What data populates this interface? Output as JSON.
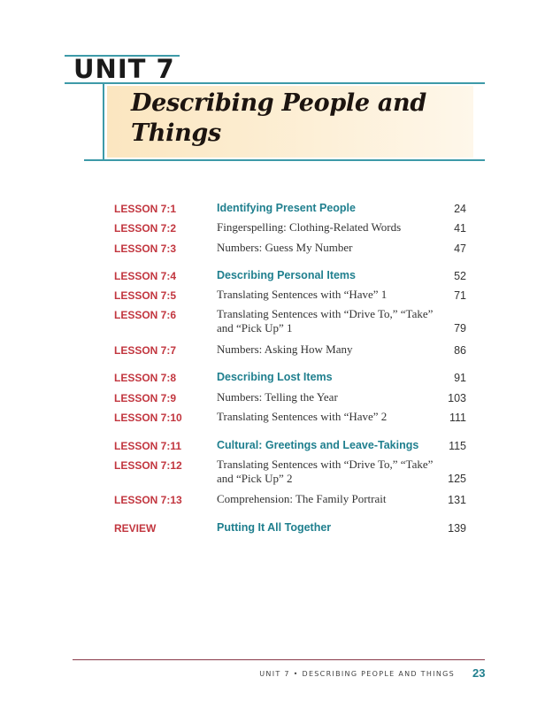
{
  "header": {
    "unit_label": "UNIT 7",
    "title": "Describing People and Things"
  },
  "lessons": [
    {
      "label": "LESSON 7:1",
      "title": "Identifying Present People",
      "page": "24",
      "highlight": true
    },
    {
      "label": "LESSON 7:2",
      "title": "Fingerspelling: Clothing-Related Words",
      "page": "41",
      "highlight": false
    },
    {
      "label": "LESSON 7:3",
      "title": "Numbers: Guess My Number",
      "page": "47",
      "highlight": false
    },
    {
      "label": "LESSON 7:4",
      "title": "Describing Personal Items",
      "page": "52",
      "highlight": true
    },
    {
      "label": "LESSON 7:5",
      "title": "Translating Sentences with “Have” 1",
      "page": "71",
      "highlight": false
    },
    {
      "label": "LESSON 7:6",
      "title": "Translating Sentences with “Drive To,” “Take” and “Pick Up” 1",
      "page": "79",
      "highlight": false
    },
    {
      "label": "LESSON 7:7",
      "title": "Numbers: Asking How Many",
      "page": "86",
      "highlight": false
    },
    {
      "label": "LESSON 7:8",
      "title": "Describing Lost Items",
      "page": "91",
      "highlight": true
    },
    {
      "label": "LESSON 7:9",
      "title": "Numbers: Telling the Year",
      "page": "103",
      "highlight": false
    },
    {
      "label": "LESSON 7:10",
      "title": "Translating Sentences with “Have” 2",
      "page": "111",
      "highlight": false
    },
    {
      "label": "LESSON 7:11",
      "title": "Cultural: Greetings and Leave-Takings",
      "page": "115",
      "highlight": true
    },
    {
      "label": "LESSON 7:12",
      "title": "Translating Sentences with “Drive To,” “Take” and “Pick Up” 2",
      "page": "125",
      "highlight": false
    },
    {
      "label": "LESSON 7:13",
      "title": "Comprehension: The Family Portrait",
      "page": "131",
      "highlight": false
    },
    {
      "label": "REVIEW",
      "title": "Putting It All Together",
      "page": "139",
      "highlight": true
    }
  ],
  "footer": {
    "running_head": "UNIT 7 • DESCRIBING PEOPLE AND THINGS",
    "page_number": "23"
  },
  "colors": {
    "accent_teal": "#1f7f8e",
    "lesson_red": "#c2363f",
    "rule_teal": "#3d9aa8",
    "footer_rule": "#8a3a4a"
  }
}
